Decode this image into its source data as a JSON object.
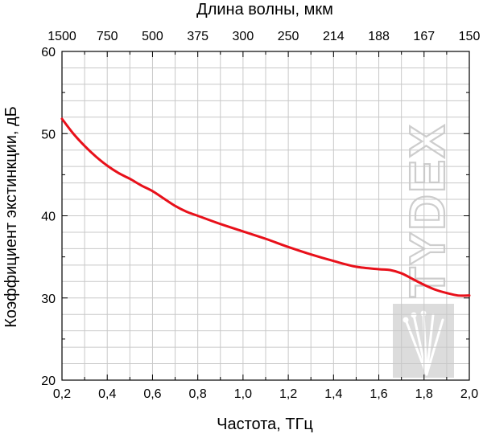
{
  "chart_data": {
    "type": "line",
    "xlabel": "Частота, ТГц",
    "ylabel": "Коэффициент экстинкции, дБ",
    "top_axis_label": "Длина волны, мкм",
    "xlim": [
      0.2,
      2.0
    ],
    "ylim": [
      20,
      60
    ],
    "x_ticks": [
      0.2,
      0.4,
      0.6,
      0.8,
      1.0,
      1.2,
      1.4,
      1.6,
      1.8,
      2.0
    ],
    "x_tick_labels": [
      "0,2",
      "0,4",
      "0,6",
      "0,8",
      "1,0",
      "1,2",
      "1,4",
      "1,6",
      "1,8",
      "2,0"
    ],
    "y_ticks": [
      20,
      30,
      40,
      50,
      60
    ],
    "y_tick_labels": [
      "20",
      "30",
      "40",
      "50",
      "60"
    ],
    "top_ticks": [
      0.2,
      0.4,
      0.6,
      0.8,
      1.0,
      1.2,
      1.4,
      1.6,
      1.8,
      2.0
    ],
    "top_tick_labels": [
      "1500",
      "750",
      "500",
      "375",
      "300",
      "250",
      "214",
      "188",
      "167",
      "150"
    ],
    "grid": true,
    "line_color": "#e8101a",
    "series": [
      {
        "x": [
          0.2,
          0.25,
          0.3,
          0.35,
          0.4,
          0.45,
          0.5,
          0.55,
          0.6,
          0.65,
          0.7,
          0.75,
          0.8,
          0.9,
          1.0,
          1.1,
          1.2,
          1.3,
          1.4,
          1.5,
          1.6,
          1.65,
          1.7,
          1.75,
          1.8,
          1.85,
          1.9,
          1.95,
          2.0
        ],
        "y": [
          51.8,
          50.0,
          48.5,
          47.2,
          46.1,
          45.2,
          44.5,
          43.7,
          43.0,
          42.1,
          41.2,
          40.5,
          40.0,
          39.0,
          38.1,
          37.2,
          36.2,
          35.3,
          34.5,
          33.8,
          33.5,
          33.4,
          33.0,
          32.3,
          31.6,
          31.0,
          30.6,
          30.3,
          30.3
        ]
      }
    ],
    "watermark": "TYDEX"
  }
}
